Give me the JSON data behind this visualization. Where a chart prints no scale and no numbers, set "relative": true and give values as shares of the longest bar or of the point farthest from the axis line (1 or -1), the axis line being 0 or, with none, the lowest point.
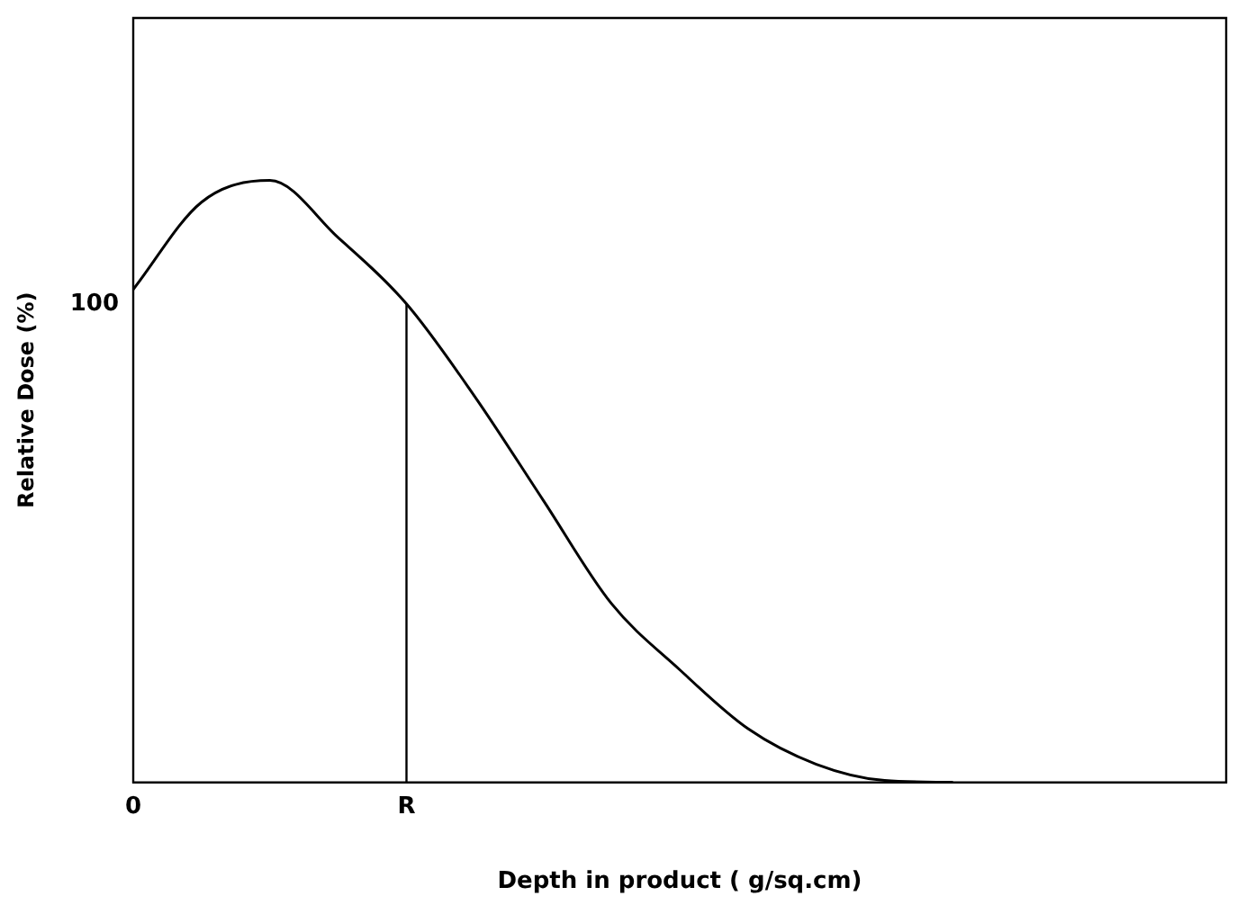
{
  "chart_data": {
    "type": "line",
    "relative": true,
    "xlabel": "Depth in product ( g/sq.cm)",
    "ylabel": "Relative Dose (%)",
    "categories": [
      "0",
      null,
      null,
      null,
      "R",
      null,
      null,
      null,
      null,
      null,
      null,
      null,
      null,
      null,
      null,
      null,
      null
    ],
    "series": [
      {
        "color": "#000000",
        "values": [
          0.819,
          0.964,
          1,
          0.905,
          0.795,
          0.641,
          0.469,
          0.297,
          0.187,
          0.089,
          0.03,
          0.003,
          0,
          null,
          null,
          null,
          null
        ]
      }
    ],
    "annotations": [
      "100"
    ],
    "ref_lines": [
      {
        "axis": "x",
        "value": "R",
        "color": "#000000"
      }
    ],
    "grid": false,
    "legend": false,
    "marker": "none",
    "line_style": "solid"
  }
}
